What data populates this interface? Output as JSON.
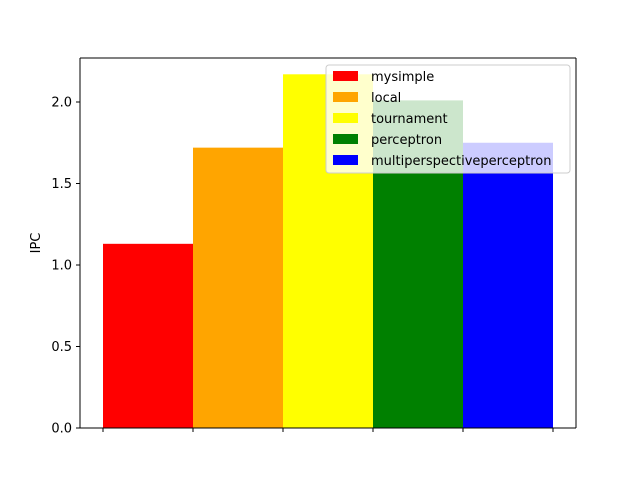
{
  "chart_data": {
    "type": "bar",
    "title": "",
    "xlabel": "",
    "ylabel": "IPC",
    "ylim": [
      0,
      2.27
    ],
    "yticks": [
      0.0,
      0.5,
      1.0,
      1.5,
      2.0
    ],
    "ytick_labels": [
      "0.0",
      "0.5",
      "1.0",
      "1.5",
      "2.0"
    ],
    "grid": false,
    "legend_position": "top-right",
    "series": [
      {
        "name": "mysimple",
        "value": 1.13,
        "color": "#ff0000"
      },
      {
        "name": "local",
        "value": 1.72,
        "color": "#ffa500"
      },
      {
        "name": "tournament",
        "value": 2.17,
        "color": "#ffff00"
      },
      {
        "name": "perceptron",
        "value": 2.01,
        "color": "#008000"
      },
      {
        "name": "multiperspectiveperceptron",
        "value": 1.75,
        "color": "#0000ff"
      }
    ]
  }
}
